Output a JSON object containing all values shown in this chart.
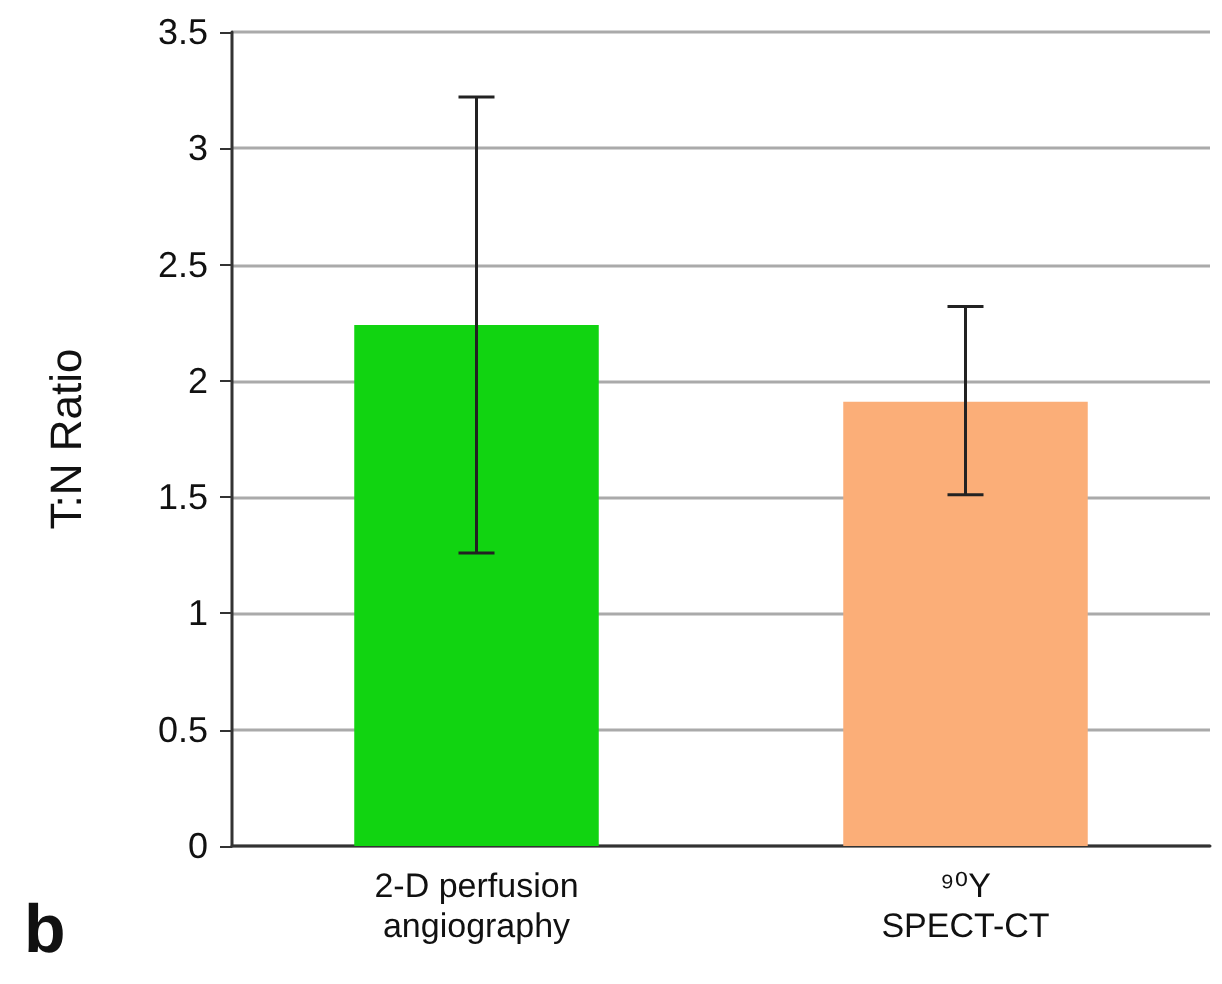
{
  "chart_data": {
    "type": "bar",
    "ylabel": "T:N Ratio",
    "categories": [
      "2-D perfusion\nangiography",
      "⁹⁰Y\nSPECT-CT"
    ],
    "values": [
      2.24,
      1.91
    ],
    "colors": [
      "#11d411",
      "#fbae78"
    ],
    "errors": [
      [
        1.26,
        3.22
      ],
      [
        1.51,
        2.32
      ]
    ],
    "ylim": [
      0,
      3.5
    ],
    "yticks": [
      0,
      0.5,
      1,
      1.5,
      2,
      2.5,
      3,
      3.5
    ],
    "grid": "y",
    "annotations": [
      "b"
    ]
  }
}
